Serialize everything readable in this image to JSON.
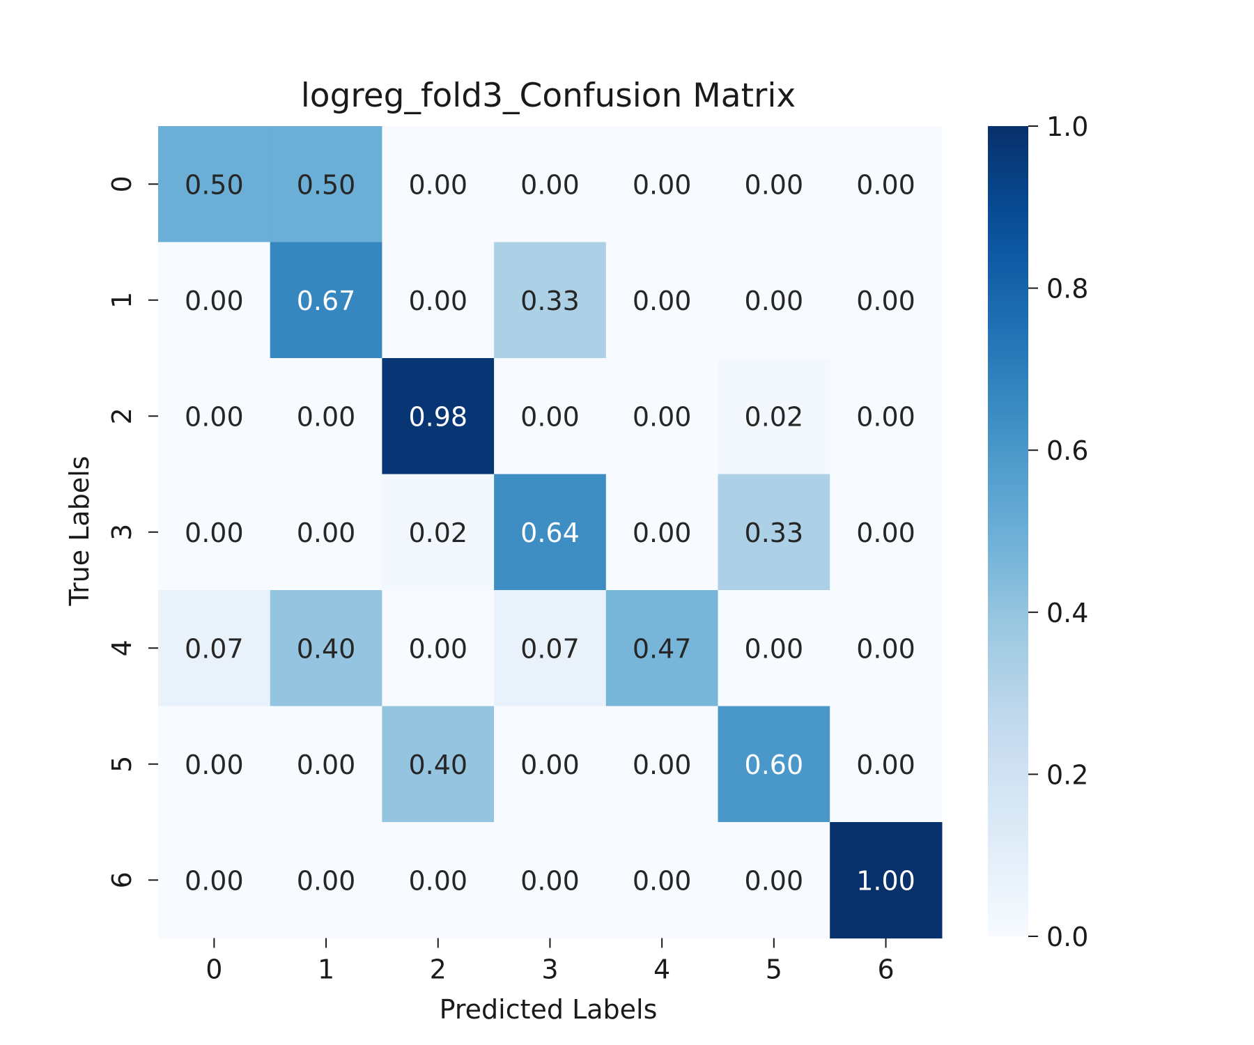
{
  "chart_data": {
    "type": "heatmap",
    "title": "logreg_fold3_Confusion Matrix",
    "xlabel": "Predicted Labels",
    "ylabel": "True Labels",
    "x_categories": [
      "0",
      "1",
      "2",
      "3",
      "4",
      "5",
      "6"
    ],
    "y_categories": [
      "0",
      "1",
      "2",
      "3",
      "4",
      "5",
      "6"
    ],
    "values": [
      [
        0.5,
        0.5,
        0.0,
        0.0,
        0.0,
        0.0,
        0.0
      ],
      [
        0.0,
        0.67,
        0.0,
        0.33,
        0.0,
        0.0,
        0.0
      ],
      [
        0.0,
        0.0,
        0.98,
        0.0,
        0.0,
        0.02,
        0.0
      ],
      [
        0.0,
        0.0,
        0.02,
        0.64,
        0.0,
        0.33,
        0.0
      ],
      [
        0.07,
        0.4,
        0.0,
        0.07,
        0.47,
        0.0,
        0.0
      ],
      [
        0.0,
        0.0,
        0.4,
        0.0,
        0.0,
        0.6,
        0.0
      ],
      [
        0.0,
        0.0,
        0.0,
        0.0,
        0.0,
        0.0,
        1.0
      ]
    ],
    "colorscale": "Blues",
    "vmin": 0.0,
    "vmax": 1.0,
    "colorbar_ticks": [
      "0.0",
      "0.2",
      "0.4",
      "0.6",
      "0.8",
      "1.0"
    ],
    "grid": false,
    "legend": "colorbar-right"
  }
}
